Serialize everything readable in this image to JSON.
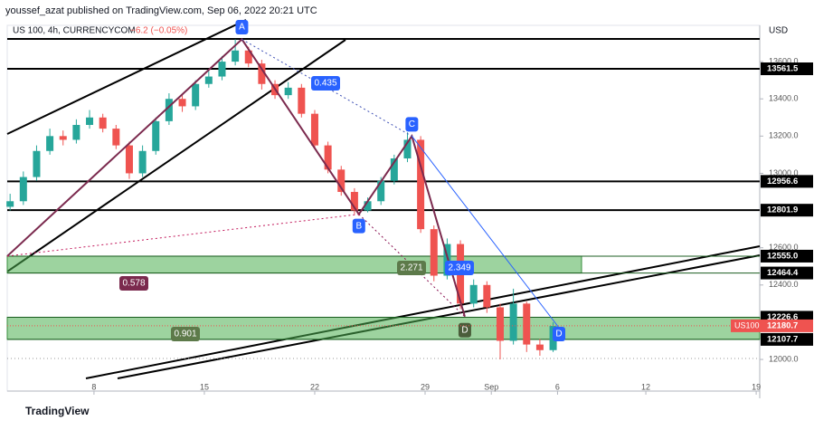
{
  "header": {
    "publisher": "youssef_azat published on TradingView.com, Sep 06, 2022 20:21 UTC",
    "symbol": "US 100, 4h, CURRENCYCOM",
    "change": "−6.2 (−0.05%)",
    "currency": "USD",
    "footer": "TradingView"
  },
  "chart_data": {
    "type": "candlestick",
    "x": [
      -3.8,
      -3.2,
      -2.6,
      -2.0,
      -1.4,
      -0.8,
      -0.2,
      0.4,
      1.0,
      1.6,
      2.2,
      2.8,
      3.4,
      4.0,
      4.6,
      5.2,
      5.8,
      6.4,
      7.0,
      7.6,
      8.2,
      8.8,
      9.4,
      10.0,
      10.6,
      11.2,
      11.8,
      12.4,
      13.0,
      13.6,
      14.2,
      14.8,
      15.4,
      16.0,
      16.6,
      17.2,
      17.8,
      18.4,
      19.0,
      19.6,
      20.2,
      20.8
    ],
    "open": [
      12820,
      12850,
      12980,
      13120,
      13200,
      13180,
      13260,
      13300,
      13240,
      13150,
      13000,
      13120,
      13280,
      13400,
      13360,
      13480,
      13520,
      13600,
      13660,
      13590,
      13480,
      13420,
      13460,
      13320,
      13150,
      13020,
      12900,
      12800,
      12850,
      12960,
      13080,
      13180,
      12700,
      12450,
      12620,
      12300,
      12400,
      12280,
      12100,
      12300,
      12080,
      12050
    ],
    "high": [
      12890,
      13010,
      13150,
      13240,
      13230,
      13290,
      13340,
      13320,
      13260,
      13170,
      13150,
      13300,
      13430,
      13420,
      13500,
      13550,
      13630,
      13720,
      13680,
      13610,
      13500,
      13490,
      13480,
      13340,
      13170,
      13040,
      12920,
      12870,
      12980,
      13100,
      13220,
      13200,
      12720,
      12650,
      12640,
      12430,
      12420,
      12300,
      12380,
      12310,
      12110,
      12200
    ],
    "low": [
      12800,
      12830,
      12960,
      13100,
      13150,
      13160,
      13240,
      13220,
      13130,
      12970,
      12980,
      13100,
      13260,
      13330,
      13340,
      13460,
      13500,
      13580,
      13570,
      13450,
      13400,
      13400,
      13300,
      13130,
      13000,
      12880,
      12780,
      12790,
      12830,
      12940,
      13060,
      12680,
      12420,
      12430,
      12270,
      12280,
      12250,
      12000,
      12080,
      12040,
      12020,
      12040
    ],
    "close": [
      12850,
      12980,
      13120,
      13200,
      13180,
      13260,
      13300,
      13240,
      13150,
      13000,
      13120,
      13280,
      13400,
      13360,
      13480,
      13520,
      13600,
      13660,
      13590,
      13480,
      13420,
      13460,
      13320,
      13150,
      13020,
      12900,
      12800,
      12850,
      12960,
      13080,
      13180,
      12700,
      12450,
      12620,
      12300,
      12400,
      12280,
      12100,
      12300,
      12080,
      12050,
      12180
    ],
    "up_color": "#26a69a",
    "down_color": "#ef5350",
    "xlim": [
      -3.93,
      30.16
    ],
    "xticks": [
      {
        "value": 0,
        "label": "8"
      },
      {
        "value": 5,
        "label": "15"
      },
      {
        "value": 10,
        "label": "22"
      },
      {
        "value": 15,
        "label": "29"
      },
      {
        "value": 18,
        "label": "Sep"
      },
      {
        "value": 21,
        "label": "6"
      },
      {
        "value": 25,
        "label": "12"
      },
      {
        "value": 30,
        "label": "19"
      }
    ],
    "ylim": [
      11830,
      13795
    ],
    "yticks": [
      {
        "value": 12000,
        "label": "12000.0"
      },
      {
        "value": 12400,
        "label": "12400.0"
      },
      {
        "value": 12600,
        "label": "12600.0"
      },
      {
        "value": 13000,
        "label": "13000.0"
      },
      {
        "value": 13200,
        "label": "13200.0"
      },
      {
        "value": 13400,
        "label": "13400.0"
      },
      {
        "value": 13600,
        "label": "13600.0"
      }
    ],
    "levels": [
      {
        "value": 13561.5,
        "label": "13561.5"
      },
      {
        "value": 12956.6,
        "label": "12956.6"
      },
      {
        "value": 12801.9,
        "label": "12801.9"
      },
      {
        "value": 12555.0,
        "label": "12555.0"
      },
      {
        "value": 12464.4,
        "label": "12464.4"
      },
      {
        "value": 12226.6,
        "label": "12226.6"
      },
      {
        "value": 12107.7,
        "label": "12107.7"
      }
    ],
    "last_price": {
      "name": "US100",
      "value": 12180.7,
      "label": "12180.7"
    },
    "pattern_x": [
      -3.93,
      6.7,
      12.0,
      14.4,
      16.8
    ],
    "pattern_y": [
      12555,
      13720,
      12780,
      13200,
      12230
    ],
    "point_labels": [
      "A",
      "B",
      "C",
      "D"
    ],
    "ratios": [
      "0.435",
      "2.271",
      "2.349",
      "0.578",
      "0.901"
    ]
  }
}
